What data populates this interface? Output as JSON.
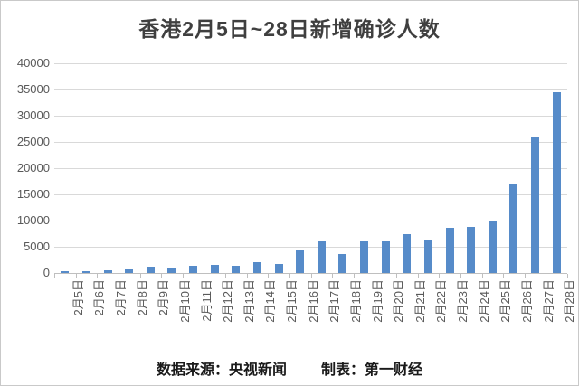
{
  "page": {
    "background": "#ffffff",
    "border_color": "#c9c9c9"
  },
  "chart_data": {
    "type": "bar",
    "title": "香港2月5日~28日新增确诊人数",
    "categories": [
      "2月5日",
      "2月6日",
      "2月7日",
      "2月8日",
      "2月9日",
      "2月10日",
      "2月11日",
      "2月12日",
      "2月13日",
      "2月14日",
      "2月15日",
      "2月16日",
      "2月17日",
      "2月18日",
      "2月19日",
      "2月20日",
      "2月21日",
      "2月22日",
      "2月23日",
      "2月24日",
      "2月25日",
      "2月26日",
      "2月27日",
      "2月28日"
    ],
    "values": [
      350,
      350,
      600,
      650,
      1150,
      1000,
      1350,
      1500,
      1350,
      2050,
      1650,
      4300,
      6100,
      3650,
      6050,
      6050,
      7500,
      6200,
      8650,
      8800,
      10000,
      17050,
      26000,
      34450
    ],
    "xlabel": "",
    "ylabel": "",
    "ylim": [
      0,
      40000
    ],
    "ytick_step": 5000,
    "ytick_labels": [
      "0",
      "5000",
      "10000",
      "15000",
      "20000",
      "25000",
      "30000",
      "35000",
      "40000"
    ],
    "grid": true,
    "legend": "none",
    "bar_color": "#568bc9",
    "gridline_color": "#d9d9d9",
    "axis_line_color": "#bfbfbf",
    "axis_label_color": "#595959",
    "title_color": "#3f3f3f"
  },
  "footer": {
    "source_label": "数据来源：央视新闻",
    "maker_label": "制表：第一财经"
  }
}
